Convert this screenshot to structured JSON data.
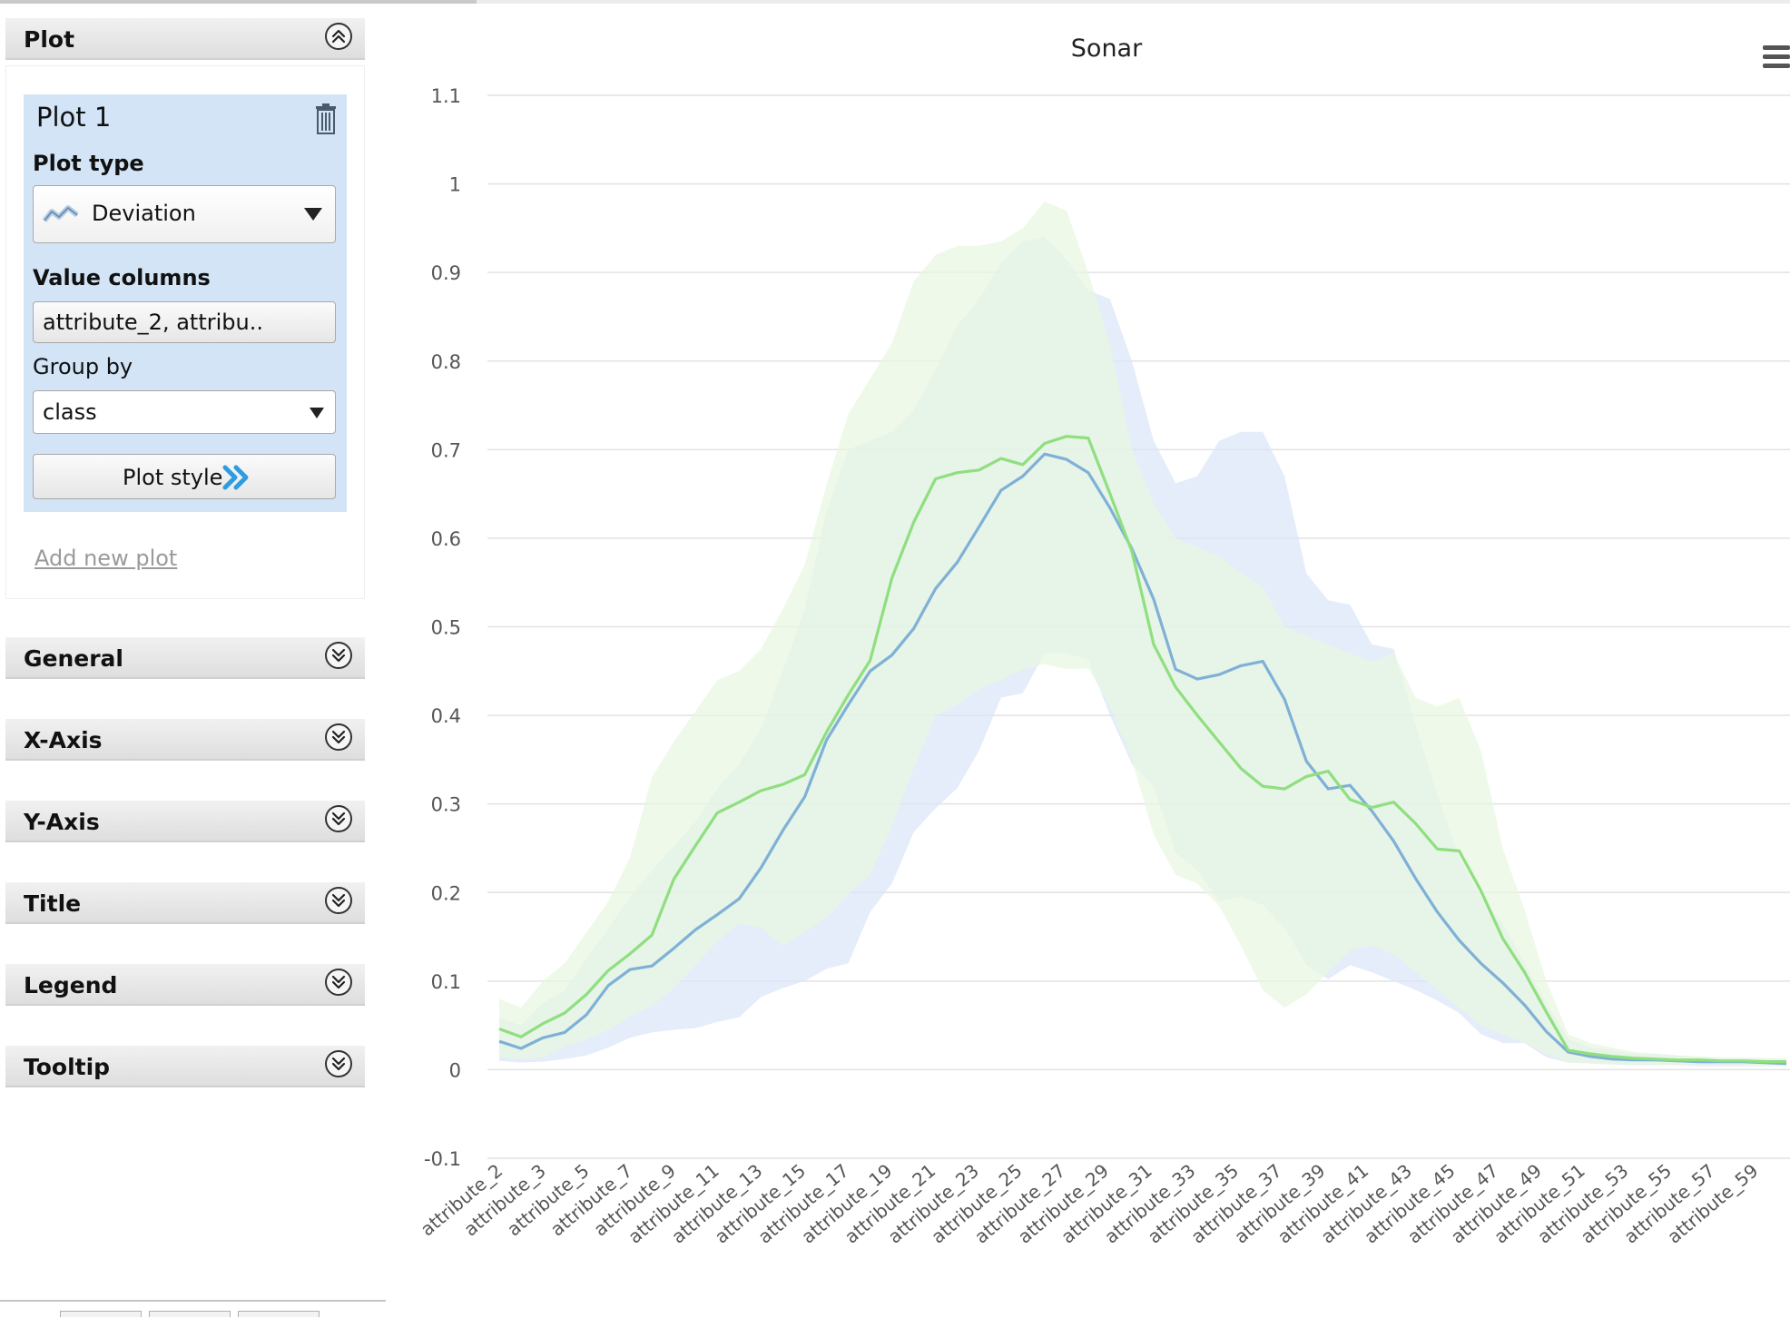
{
  "sidebar": {
    "plot_section": {
      "label": "Plot"
    },
    "plot_card": {
      "title": "Plot 1",
      "plot_type_label": "Plot type",
      "plot_type_value": "Deviation",
      "value_columns_label": "Value columns",
      "value_columns_value": "attribute_2, attribu..",
      "group_by_label": "Group by",
      "group_by_value": "class",
      "plot_style_label": "Plot style"
    },
    "add_new_plot": "Add new plot",
    "sections": [
      {
        "label": "General"
      },
      {
        "label": "X-Axis"
      },
      {
        "label": "Y-Axis"
      },
      {
        "label": "Title"
      },
      {
        "label": "Legend"
      },
      {
        "label": "Tooltip"
      }
    ]
  },
  "chart_data": {
    "type": "area",
    "title": "Sonar",
    "xlabel": "",
    "ylabel": "",
    "ylim": [
      -0.1,
      1.1
    ],
    "yticks": [
      -0.1,
      0,
      0.1,
      0.2,
      0.3,
      0.4,
      0.5,
      0.6,
      0.7,
      0.8,
      0.9,
      1,
      1.1
    ],
    "grid": true,
    "xtick_labels": [
      "attribute_2",
      "attribute_3",
      "attribute_5",
      "attribute_7",
      "attribute_9",
      "attribute_11",
      "attribute_13",
      "attribute_15",
      "attribute_17",
      "attribute_19",
      "attribute_21",
      "attribute_23",
      "attribute_25",
      "attribute_27",
      "attribute_29",
      "attribute_31",
      "attribute_33",
      "attribute_35",
      "attribute_37",
      "attribute_39",
      "attribute_41",
      "attribute_43",
      "attribute_45",
      "attribute_47",
      "attribute_49",
      "attribute_51",
      "attribute_53",
      "attribute_55",
      "attribute_57",
      "attribute_59"
    ],
    "series": [
      {
        "color": "#7fb0d6",
        "band_color": "#dbe6f8",
        "mean": [
          0.032,
          0.024,
          0.036,
          0.042,
          0.062,
          0.095,
          0.113,
          0.117,
          0.137,
          0.158,
          0.175,
          0.193,
          0.228,
          0.27,
          0.308,
          0.372,
          0.412,
          0.45,
          0.468,
          0.498,
          0.543,
          0.573,
          0.613,
          0.654,
          0.67,
          0.695,
          0.689,
          0.674,
          0.634,
          0.588,
          0.531,
          0.452,
          0.441,
          0.446,
          0.456,
          0.461,
          0.418,
          0.348,
          0.317,
          0.321,
          0.292,
          0.258,
          0.216,
          0.178,
          0.146,
          0.12,
          0.098,
          0.073,
          0.043,
          0.02,
          0.015,
          0.012,
          0.011,
          0.011,
          0.01,
          0.009,
          0.009,
          0.009,
          0.008,
          0.007
        ],
        "lower": [
          0.01,
          0.008,
          0.009,
          0.012,
          0.016,
          0.025,
          0.036,
          0.042,
          0.045,
          0.047,
          0.054,
          0.059,
          0.082,
          0.092,
          0.1,
          0.114,
          0.12,
          0.178,
          0.21,
          0.268,
          0.295,
          0.318,
          0.36,
          0.42,
          0.425,
          0.47,
          0.47,
          0.463,
          0.4,
          0.345,
          0.32,
          0.245,
          0.225,
          0.19,
          0.195,
          0.186,
          0.16,
          0.118,
          0.102,
          0.118,
          0.11,
          0.1,
          0.09,
          0.078,
          0.064,
          0.04,
          0.03,
          0.03,
          0.014,
          0.008,
          0.007,
          0.006,
          0.005,
          0.005,
          0.005,
          0.004,
          0.004,
          0.004,
          0.004,
          0.004
        ],
        "upper": [
          0.058,
          0.05,
          0.075,
          0.09,
          0.125,
          0.16,
          0.195,
          0.225,
          0.252,
          0.28,
          0.318,
          0.345,
          0.385,
          0.45,
          0.52,
          0.63,
          0.7,
          0.71,
          0.72,
          0.745,
          0.79,
          0.84,
          0.87,
          0.91,
          0.935,
          0.94,
          0.915,
          0.88,
          0.87,
          0.8,
          0.71,
          0.662,
          0.67,
          0.71,
          0.72,
          0.72,
          0.67,
          0.56,
          0.53,
          0.525,
          0.48,
          0.475,
          0.39,
          0.31,
          0.24,
          0.195,
          0.165,
          0.12,
          0.075,
          0.035,
          0.025,
          0.022,
          0.018,
          0.018,
          0.016,
          0.014,
          0.013,
          0.013,
          0.012,
          0.012
        ]
      },
      {
        "color": "#8fdf7f",
        "band_color": "#e8f7e0",
        "mean": [
          0.046,
          0.037,
          0.052,
          0.064,
          0.085,
          0.112,
          0.131,
          0.152,
          0.215,
          0.253,
          0.29,
          0.302,
          0.315,
          0.322,
          0.333,
          0.381,
          0.423,
          0.462,
          0.555,
          0.618,
          0.667,
          0.674,
          0.677,
          0.69,
          0.683,
          0.707,
          0.715,
          0.713,
          0.65,
          0.585,
          0.48,
          0.432,
          0.4,
          0.37,
          0.34,
          0.32,
          0.317,
          0.331,
          0.337,
          0.305,
          0.296,
          0.302,
          0.278,
          0.249,
          0.247,
          0.202,
          0.148,
          0.11,
          0.065,
          0.022,
          0.018,
          0.015,
          0.013,
          0.012,
          0.011,
          0.011,
          0.01,
          0.01,
          0.009,
          0.009
        ],
        "lower": [
          0.014,
          0.012,
          0.014,
          0.026,
          0.034,
          0.045,
          0.06,
          0.072,
          0.092,
          0.118,
          0.145,
          0.165,
          0.16,
          0.14,
          0.155,
          0.172,
          0.198,
          0.22,
          0.275,
          0.34,
          0.4,
          0.412,
          0.43,
          0.44,
          0.452,
          0.458,
          0.452,
          0.453,
          0.41,
          0.35,
          0.265,
          0.22,
          0.21,
          0.185,
          0.14,
          0.09,
          0.07,
          0.085,
          0.11,
          0.135,
          0.14,
          0.13,
          0.11,
          0.09,
          0.07,
          0.05,
          0.04,
          0.03,
          0.018,
          0.008,
          0.007,
          0.006,
          0.006,
          0.005,
          0.005,
          0.005,
          0.005,
          0.005,
          0.004,
          0.004
        ],
        "upper": [
          0.08,
          0.07,
          0.1,
          0.12,
          0.155,
          0.19,
          0.24,
          0.33,
          0.37,
          0.405,
          0.44,
          0.45,
          0.475,
          0.52,
          0.57,
          0.66,
          0.74,
          0.78,
          0.82,
          0.89,
          0.92,
          0.93,
          0.93,
          0.935,
          0.95,
          0.98,
          0.97,
          0.9,
          0.82,
          0.7,
          0.64,
          0.6,
          0.59,
          0.58,
          0.56,
          0.545,
          0.5,
          0.49,
          0.48,
          0.47,
          0.46,
          0.47,
          0.42,
          0.41,
          0.42,
          0.36,
          0.25,
          0.18,
          0.1,
          0.04,
          0.03,
          0.025,
          0.02,
          0.018,
          0.016,
          0.015,
          0.014,
          0.014,
          0.013,
          0.013
        ]
      }
    ]
  }
}
